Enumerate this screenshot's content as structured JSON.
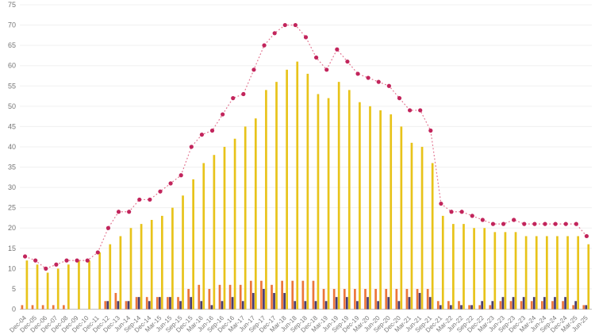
{
  "chart_data": {
    "type": "combo-bar-line",
    "title": "",
    "xlabel": "",
    "ylabel": "",
    "ylim": [
      0,
      75
    ],
    "ytick_step": 5,
    "grid": true,
    "legend": "none",
    "background_color": "#ffffff",
    "gridline_color": "#f0f0f0",
    "baseline_color": "#c7c7c7",
    "tick_label_color": "#757575",
    "y_tick_labels": [
      "0",
      "5",
      "10",
      "15",
      "20",
      "25",
      "30",
      "35",
      "40",
      "45",
      "50",
      "55",
      "60",
      "65",
      "70",
      "75"
    ],
    "categories": [
      "Dec-04",
      "Dec-05",
      "Dec-06",
      "Dec-07",
      "Dec-08",
      "Dec-09",
      "Dec-10",
      "Dec-11",
      "Dec-12",
      "Dec-13",
      "Jun-14",
      "Sep-14",
      "Dec-14",
      "Mar-15",
      "Jun-15",
      "Sep-15",
      "Dec-15",
      "Mar-16",
      "Jun-16",
      "Sep-16",
      "Dec-16",
      "Mar-17",
      "Jun-17",
      "Sep-17",
      "Dec-17",
      "Mar-18",
      "Jun-18",
      "Sep-18",
      "Dec-18",
      "Mar-19",
      "Jun-19",
      "Sep-19",
      "Dec-19",
      "Mar-20",
      "Jun-20",
      "Sep-20",
      "Dec-20",
      "Mar-21",
      "Jun-21",
      "Sep-21",
      "Dec-21",
      "Mar-22",
      "Jun-22",
      "Sep-22",
      "Dec-22",
      "Mar-23",
      "Jun-23",
      "Sep-23",
      "Dec-23",
      "Mar-24",
      "Jun-24",
      "Sep-24",
      "Dec-24",
      "Mar-25",
      "Jun-25"
    ],
    "series": [
      {
        "name": "orange-bars",
        "type": "bar",
        "color": "#EB763A",
        "values": [
          1,
          1,
          1,
          1,
          1,
          0,
          0,
          0,
          2,
          4,
          2,
          3,
          3,
          3,
          3,
          3,
          5,
          6,
          5,
          6,
          6,
          6,
          7,
          7,
          6,
          7,
          7,
          7,
          7,
          5,
          5,
          5,
          5,
          5,
          5,
          5,
          5,
          5,
          5,
          5,
          2,
          2,
          2,
          1,
          1,
          1,
          2,
          2,
          2,
          2,
          2,
          2,
          2,
          1,
          1
        ]
      },
      {
        "name": "purple-bars",
        "type": "bar",
        "color": "#483C72",
        "values": [
          0,
          0,
          0,
          0,
          0,
          0,
          0,
          0,
          2,
          2,
          2,
          3,
          2,
          3,
          3,
          2,
          3,
          2,
          1,
          2,
          3,
          2,
          4,
          5,
          4,
          4,
          2,
          2,
          2,
          2,
          3,
          3,
          2,
          3,
          2,
          3,
          2,
          3,
          4,
          3,
          1,
          1,
          1,
          1,
          2,
          2,
          3,
          3,
          3,
          3,
          3,
          3,
          3,
          2,
          1
        ]
      },
      {
        "name": "yellow-bars",
        "type": "bar",
        "color": "#E8C31A",
        "values": [
          12,
          11,
          9,
          10,
          11,
          12,
          12,
          14,
          16,
          18,
          20,
          21,
          22,
          23,
          25,
          28,
          32,
          36,
          38,
          40,
          42,
          45,
          47,
          54,
          56,
          59,
          61,
          58,
          53,
          52,
          56,
          54,
          51,
          50,
          49,
          48,
          45,
          41,
          40,
          36,
          23,
          21,
          21,
          20,
          20,
          19,
          19,
          19,
          18,
          18,
          18,
          18,
          18,
          18,
          16
        ]
      },
      {
        "name": "red-line",
        "type": "line",
        "style": "dotted",
        "marker_color": "#C2255C",
        "line_color": "#E2738F",
        "values": [
          13,
          12,
          10,
          11,
          12,
          12,
          12,
          14,
          20,
          24,
          24,
          27,
          27,
          29,
          31,
          33,
          40,
          43,
          44,
          48,
          52,
          53,
          59,
          65,
          68,
          70,
          70,
          67,
          62,
          59,
          64,
          61,
          58,
          57,
          56,
          55,
          52,
          49,
          49,
          44,
          26,
          24,
          24,
          23,
          22,
          21,
          21,
          22,
          21,
          21,
          21,
          21,
          21,
          21,
          18
        ]
      }
    ]
  }
}
